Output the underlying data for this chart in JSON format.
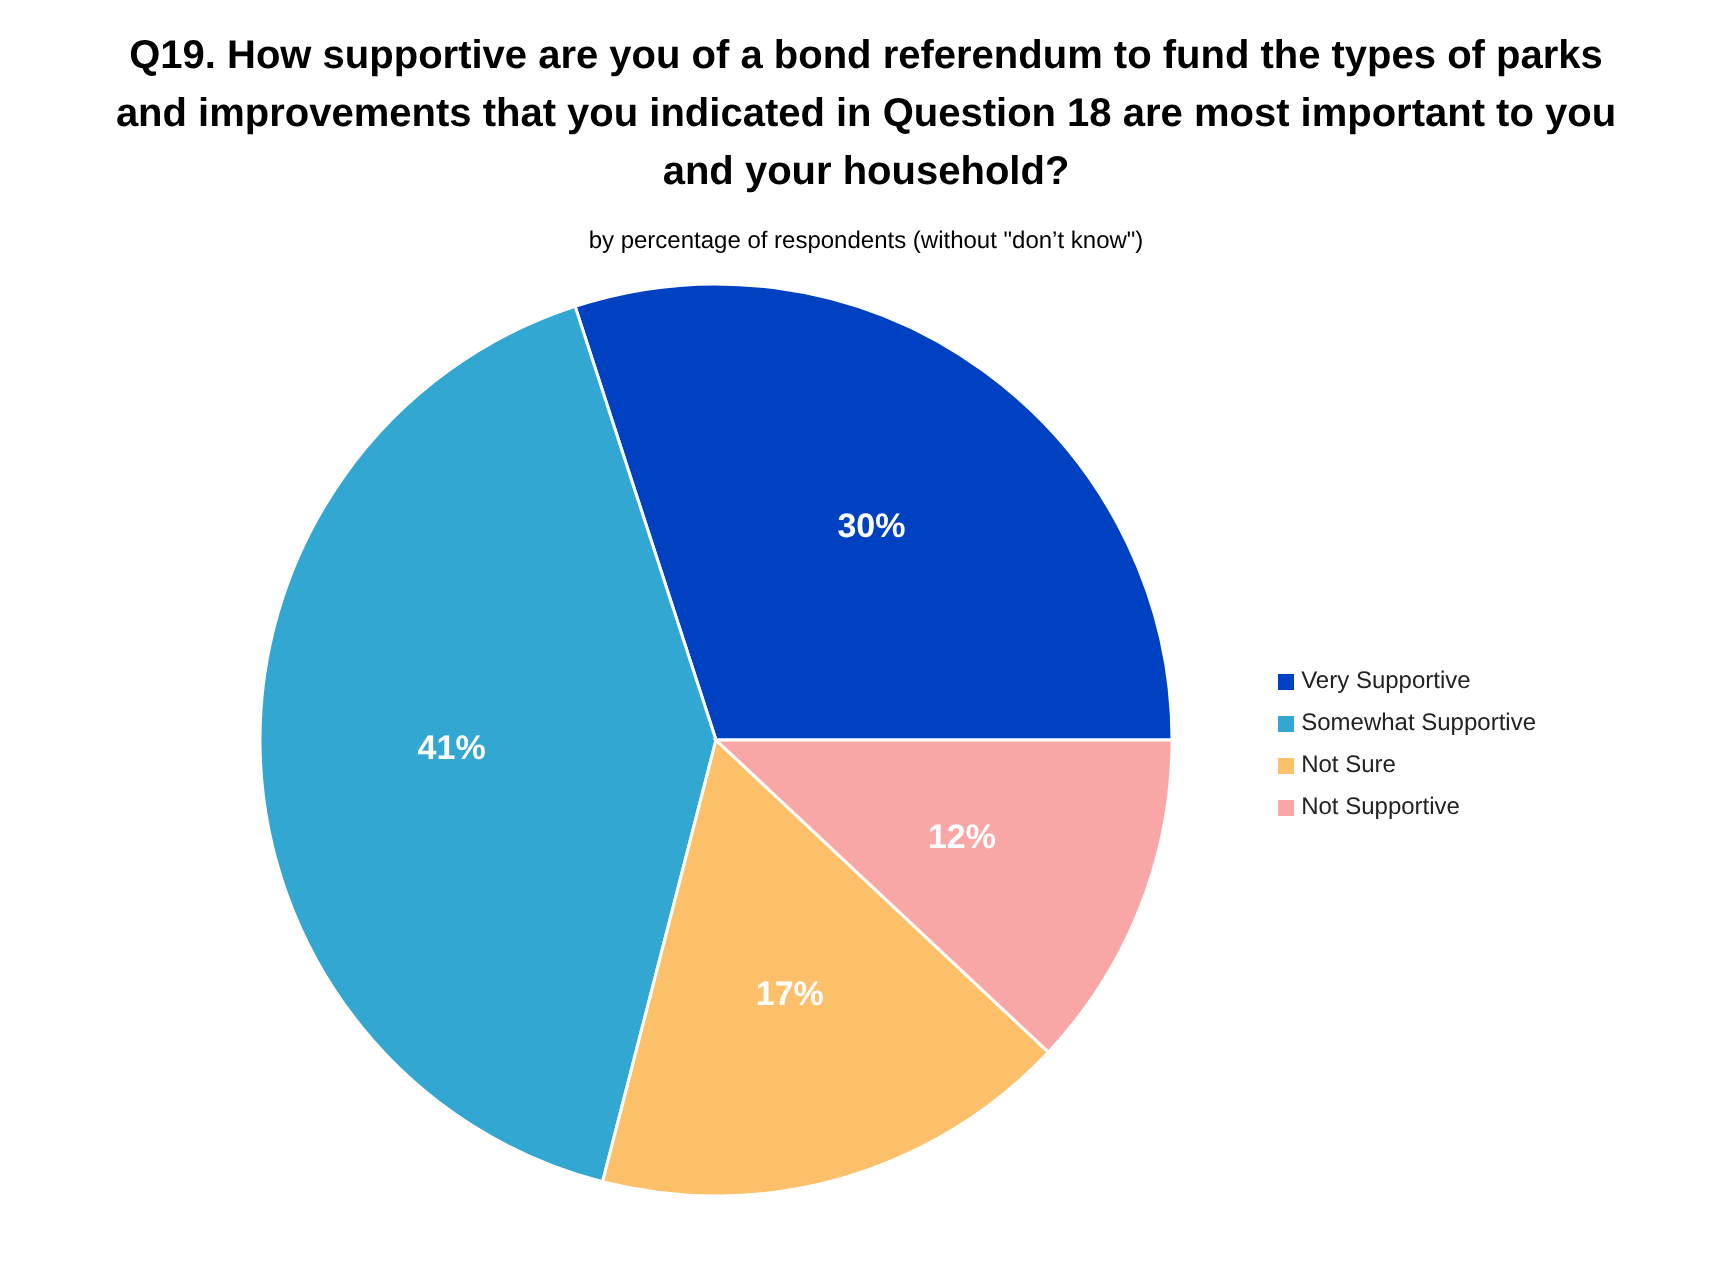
{
  "chart_data": {
    "type": "pie",
    "title": "Q19. How supportive are you of a bond referendum to fund the types of parks and improvements that you indicated in Question 18 are most important to you and your household?",
    "subtitle": "by percentage of respondents (without \"don’t know\")",
    "categories": [
      "Very Supportive",
      "Somewhat Supportive",
      "Not Sure",
      "Not Supportive"
    ],
    "values": [
      30,
      41,
      17,
      12
    ],
    "colors": [
      "#0041c2",
      "#31a7d1",
      "#fdc06a",
      "#f9a7a6"
    ],
    "value_labels": [
      "30%",
      "41%",
      "17%",
      "12%"
    ],
    "legend": "right"
  }
}
